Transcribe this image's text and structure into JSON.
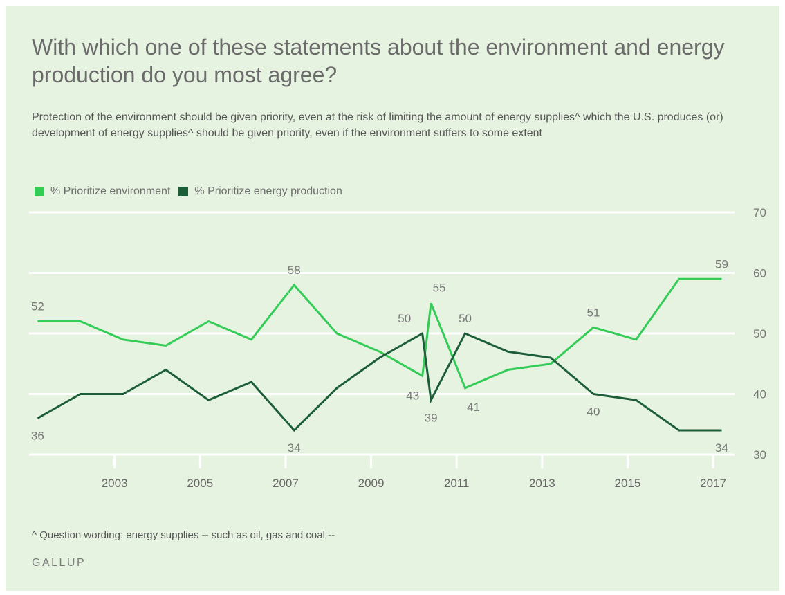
{
  "title": "With which one of these statements about the environment and energy production do you most agree?",
  "subtitle": "Protection of the environment should be given priority, even at the risk of limiting the amount of energy supplies^ which the U.S. produces (or) development of energy supplies^ should be given priority, even if the environment suffers to some extent",
  "footnote": "^ Question wording: energy supplies -- such as oil, gas and coal --",
  "brand": "GALLUP",
  "colors": {
    "background": "#e7f3e1",
    "environment": "#33cc57",
    "energy": "#1c5e38",
    "grid": "#ffffff",
    "text": "#6b6b6b"
  },
  "chart_data": {
    "type": "line",
    "ylim": [
      30,
      70
    ],
    "yticks": [
      30,
      40,
      50,
      60,
      70
    ],
    "y_axis_side": "right",
    "xlim": [
      2001,
      2017.5
    ],
    "xticks": [
      {
        "value": 2003,
        "label": "2003"
      },
      {
        "value": 2005,
        "label": "2005"
      },
      {
        "value": 2007,
        "label": "2007"
      },
      {
        "value": 2009,
        "label": "2009"
      },
      {
        "value": 2011,
        "label": "2011"
      },
      {
        "value": 2013,
        "label": "2013"
      },
      {
        "value": 2015,
        "label": "2015"
      },
      {
        "value": 2017,
        "label": "2017"
      }
    ],
    "grid": true,
    "legend_position": "top-left",
    "series": [
      {
        "name": "% Prioritize environment",
        "color": "#33cc57",
        "x": [
          2001.2,
          2002.2,
          2003.2,
          2004.2,
          2005.2,
          2006.2,
          2007.2,
          2008.2,
          2009.2,
          2010.2,
          2010.4,
          2011.2,
          2012.2,
          2013.2,
          2014.2,
          2015.2,
          2016.2,
          2017.2
        ],
        "values": [
          52,
          52,
          49,
          48,
          52,
          49,
          58,
          50,
          47,
          43,
          55,
          41,
          44,
          45,
          51,
          49,
          59,
          59
        ],
        "labels": [
          {
            "index": 0,
            "text": "52",
            "pos": "above"
          },
          {
            "index": 6,
            "text": "58",
            "pos": "above"
          },
          {
            "index": 9,
            "text": "43",
            "pos": "below-left"
          },
          {
            "index": 10,
            "text": "55",
            "pos": "above-right"
          },
          {
            "index": 11,
            "text": "41",
            "pos": "below-right"
          },
          {
            "index": 14,
            "text": "51",
            "pos": "above"
          },
          {
            "index": 17,
            "text": "59",
            "pos": "above"
          }
        ]
      },
      {
        "name": "% Prioritize energy production",
        "color": "#1c5e38",
        "x": [
          2001.2,
          2002.2,
          2003.2,
          2004.2,
          2005.2,
          2006.2,
          2007.2,
          2008.2,
          2009.2,
          2010.2,
          2010.4,
          2011.2,
          2012.2,
          2013.2,
          2014.2,
          2015.2,
          2016.2,
          2017.2
        ],
        "values": [
          36,
          40,
          40,
          44,
          39,
          42,
          34,
          41,
          46,
          50,
          39,
          50,
          47,
          46,
          40,
          39,
          34,
          34
        ],
        "labels": [
          {
            "index": 0,
            "text": "36",
            "pos": "below"
          },
          {
            "index": 6,
            "text": "34",
            "pos": "below"
          },
          {
            "index": 9,
            "text": "50",
            "pos": "above-left"
          },
          {
            "index": 10,
            "text": "39",
            "pos": "below"
          },
          {
            "index": 11,
            "text": "50",
            "pos": "above"
          },
          {
            "index": 14,
            "text": "40",
            "pos": "below"
          },
          {
            "index": 17,
            "text": "34",
            "pos": "below"
          }
        ]
      }
    ]
  }
}
